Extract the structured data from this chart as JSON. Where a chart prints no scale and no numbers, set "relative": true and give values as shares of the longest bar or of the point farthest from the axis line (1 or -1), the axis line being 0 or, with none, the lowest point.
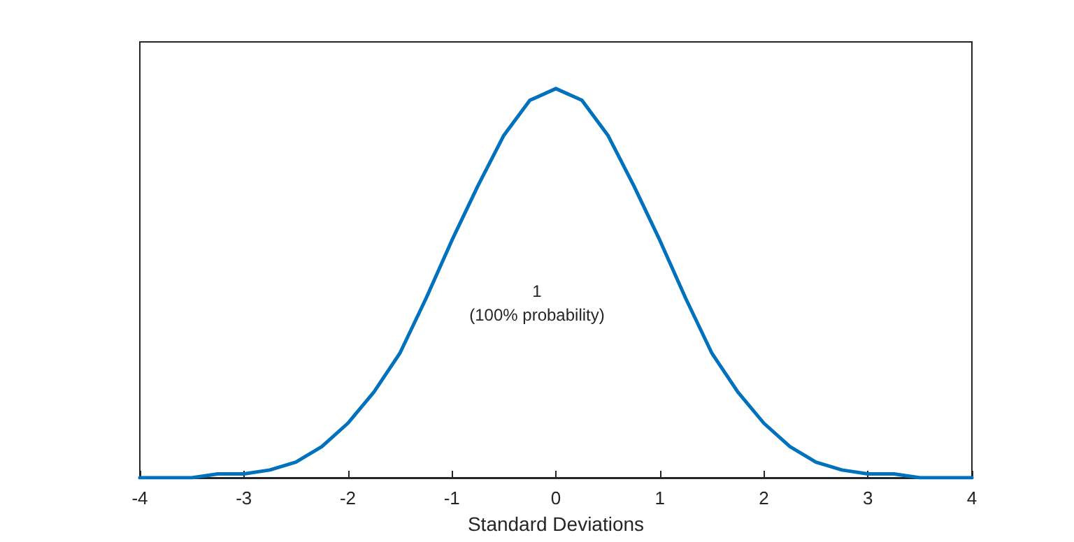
{
  "chart_data": {
    "type": "line",
    "relative": true,
    "xlabel": "Standard Deviations",
    "xlim": [
      -4,
      4
    ],
    "xticks": [
      -4,
      -3,
      -2,
      -1,
      0,
      1,
      2,
      3,
      4
    ],
    "grid": false,
    "marker": "none",
    "line_style": "solid",
    "x": [
      -4,
      -3.75,
      -3.5,
      -3.25,
      -3,
      -2.75,
      -2.5,
      -2.25,
      -2,
      -1.75,
      -1.5,
      -1.25,
      -1,
      -0.75,
      -0.5,
      -0.25,
      0,
      0.25,
      0.5,
      0.75,
      1,
      1.25,
      1.5,
      1.75,
      2,
      2.25,
      2.5,
      2.75,
      3,
      3.25,
      3.5,
      3.75,
      4
    ],
    "series": [
      {
        "color": "#0072bd",
        "values": [
          0,
          0,
          0,
          0.01,
          0.01,
          0.02,
          0.04,
          0.08,
          0.14,
          0.22,
          0.32,
          0.46,
          0.61,
          0.75,
          0.88,
          0.97,
          1,
          0.97,
          0.88,
          0.75,
          0.61,
          0.46,
          0.32,
          0.22,
          0.14,
          0.08,
          0.04,
          0.02,
          0.01,
          0.01,
          0,
          0,
          0
        ]
      }
    ],
    "annotations": [
      "1\n(100% probability)"
    ]
  }
}
